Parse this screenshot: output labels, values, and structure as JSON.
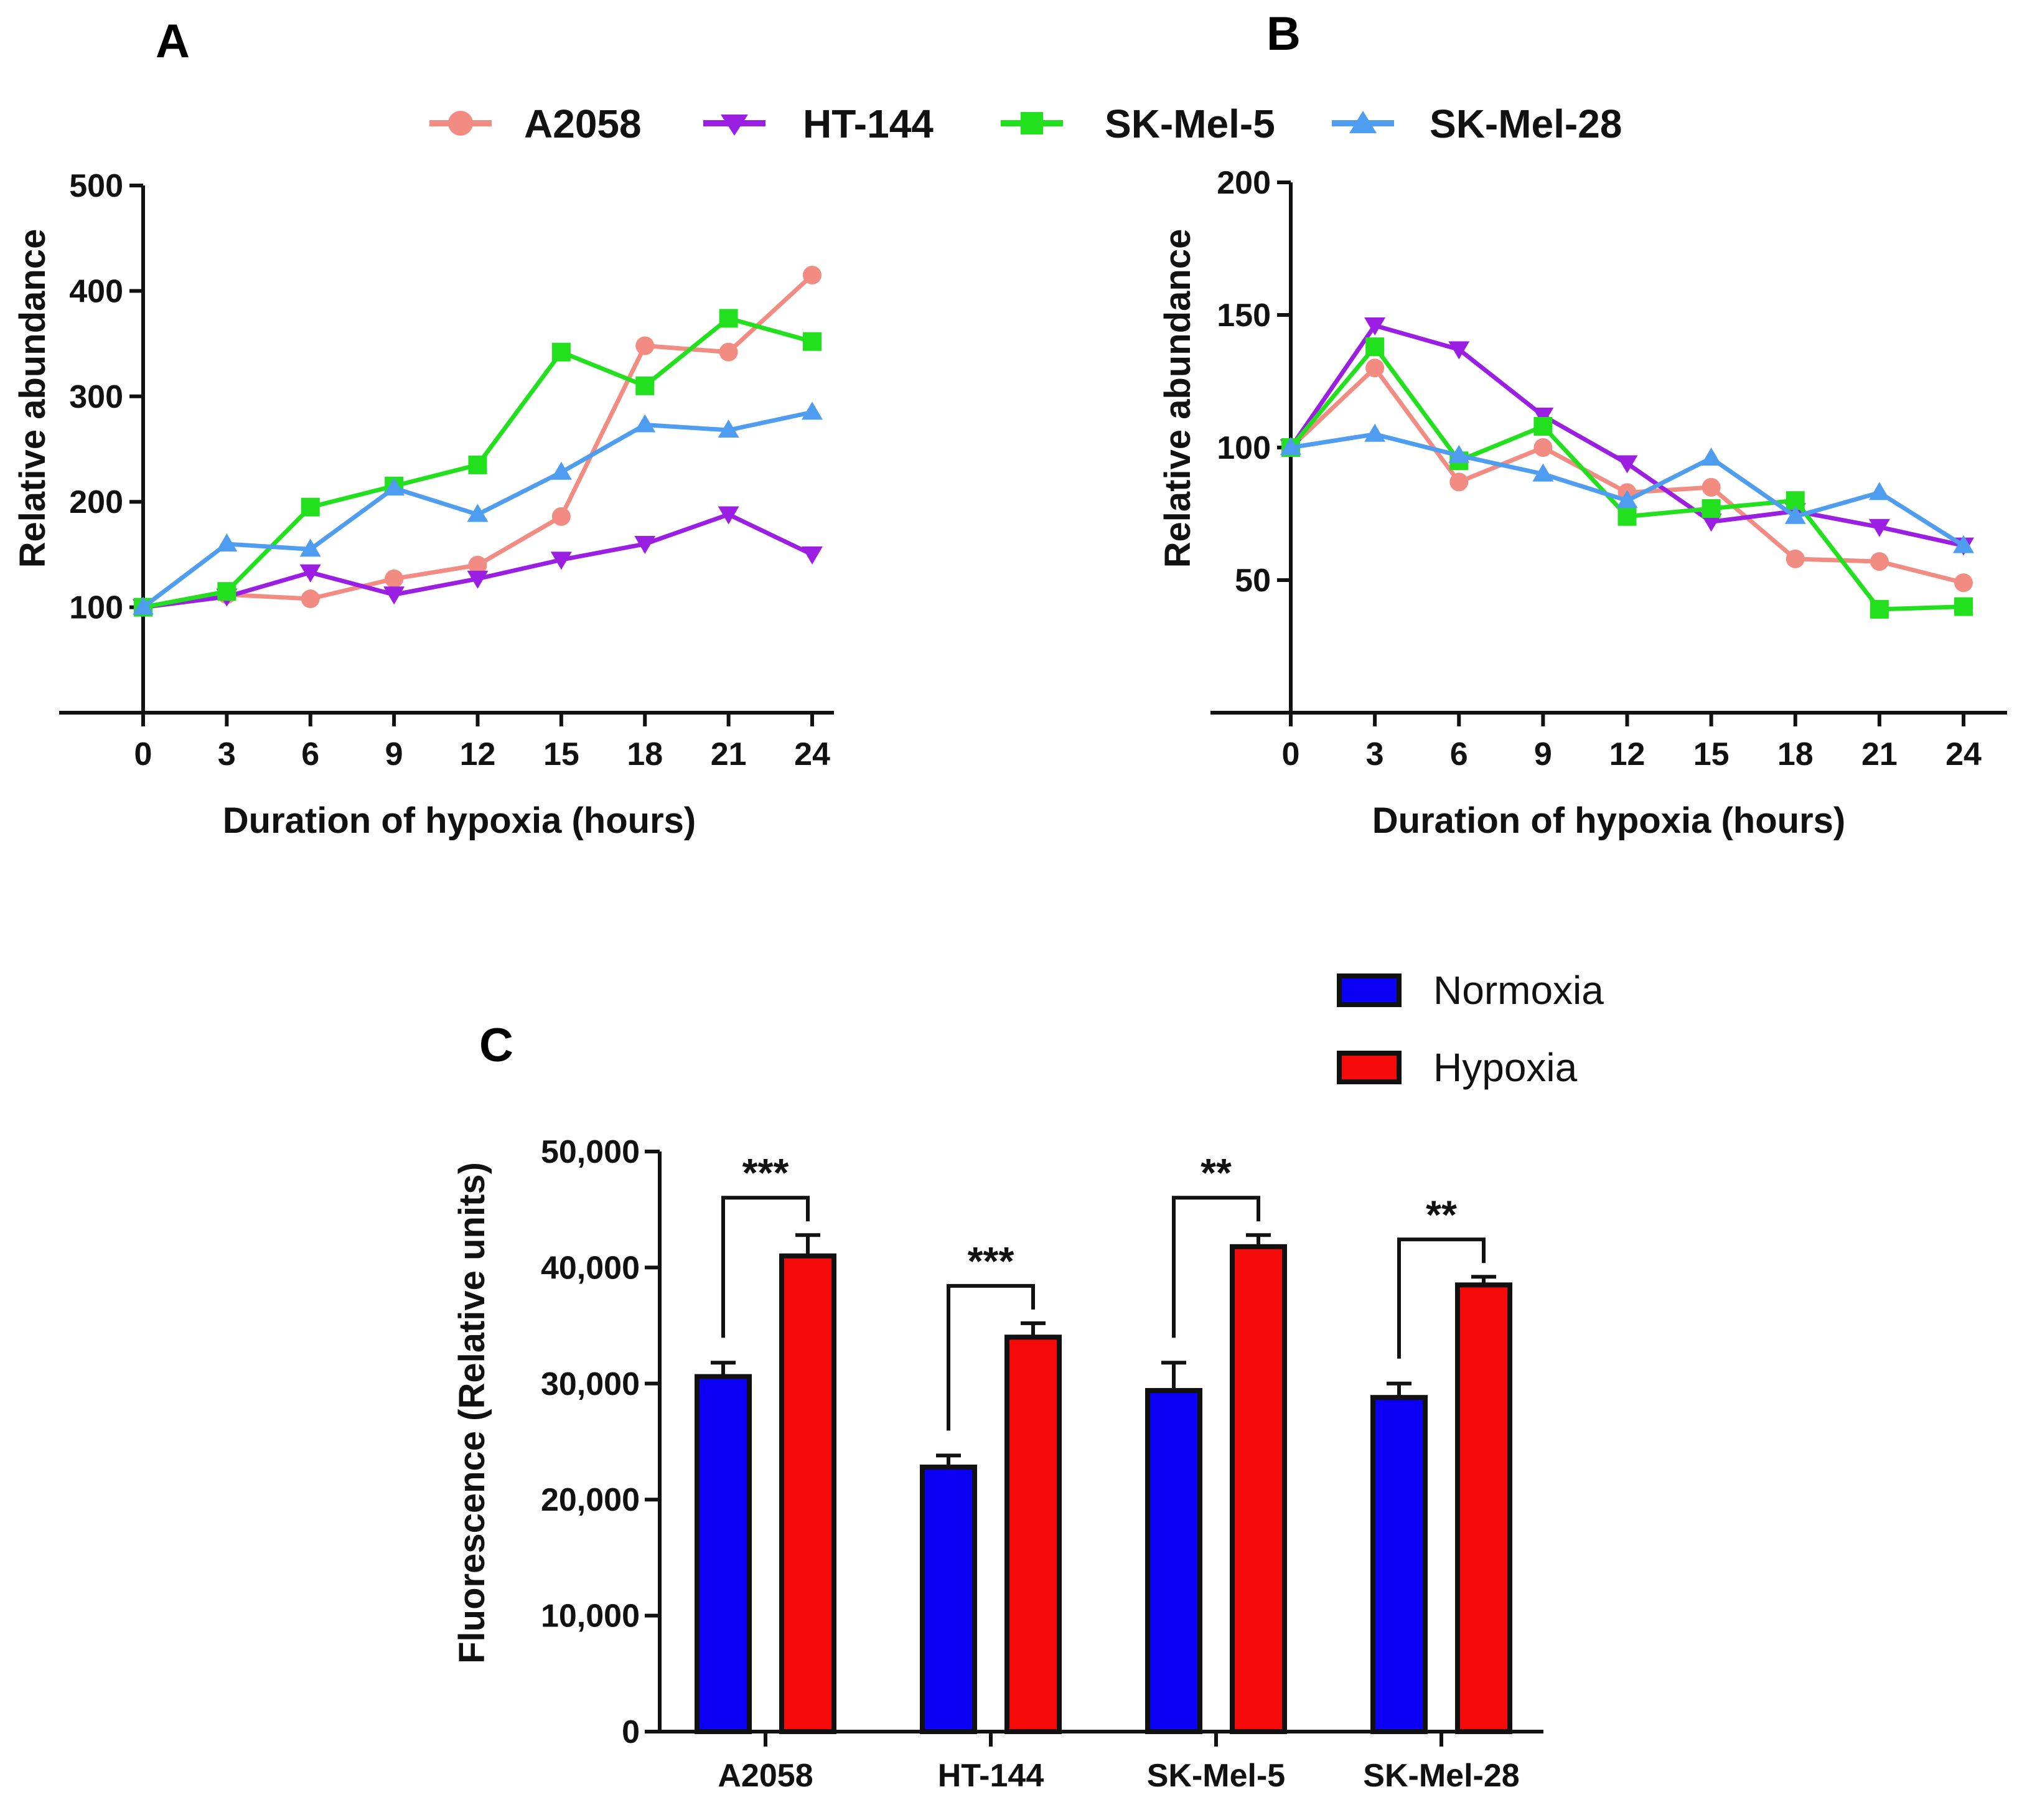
{
  "panel_labels": [
    "A",
    "B",
    "C"
  ],
  "colors": {
    "A2058": "#f28b82",
    "HT-144": "#9b1fe3",
    "SK-Mel-5": "#22e01e",
    "SK-Mel-28": "#4e9df0",
    "Normoxia": "#0b00f5",
    "Hypoxia": "#f50a0a"
  },
  "chart_data": [
    {
      "panel": "A",
      "type": "line",
      "xlabel": "Duration of hypoxia (hours)",
      "ylabel": "Relative abundance",
      "x": [
        0,
        3,
        6,
        9,
        12,
        15,
        18,
        21,
        24
      ],
      "xticks": [
        "0",
        "3",
        "6",
        "9",
        "12",
        "15",
        "18",
        "21",
        "24"
      ],
      "ylim": [
        0,
        500
      ],
      "yticks": [
        100,
        200,
        300,
        400,
        500
      ],
      "ytick_labels": [
        "100",
        "200",
        "300",
        "400",
        "500"
      ],
      "legend": [
        "A2058",
        "HT-144",
        "SK-Mel-5",
        "SK-Mel-28"
      ],
      "series": [
        {
          "name": "A2058",
          "marker": "circle",
          "values": [
            100,
            112,
            108,
            127,
            140,
            186,
            348,
            342,
            415
          ]
        },
        {
          "name": "HT-144",
          "marker": "triangle-down",
          "values": [
            100,
            110,
            133,
            112,
            127,
            145,
            160,
            188,
            150
          ]
        },
        {
          "name": "SK-Mel-5",
          "marker": "square",
          "values": [
            100,
            115,
            195,
            215,
            235,
            342,
            310,
            374,
            352
          ]
        },
        {
          "name": "SK-Mel-28",
          "marker": "triangle-up",
          "values": [
            100,
            160,
            155,
            213,
            188,
            228,
            273,
            268,
            285
          ]
        }
      ]
    },
    {
      "panel": "B",
      "type": "line",
      "xlabel": "Duration of hypoxia (hours)",
      "ylabel": "Relative abundance",
      "x": [
        0,
        3,
        6,
        9,
        12,
        15,
        18,
        21,
        24
      ],
      "xticks": [
        "0",
        "3",
        "6",
        "9",
        "12",
        "15",
        "18",
        "21",
        "24"
      ],
      "ylim": [
        0,
        200
      ],
      "yticks": [
        50,
        100,
        150,
        200
      ],
      "ytick_labels": [
        "50",
        "100",
        "150",
        "200"
      ],
      "series": [
        {
          "name": "A2058",
          "marker": "circle",
          "values": [
            100,
            130,
            87,
            100,
            83,
            85,
            58,
            57,
            49
          ]
        },
        {
          "name": "HT-144",
          "marker": "triangle-down",
          "values": [
            100,
            146,
            137,
            112,
            94,
            72,
            76,
            70,
            63
          ]
        },
        {
          "name": "SK-Mel-5",
          "marker": "square",
          "values": [
            100,
            138,
            95,
            108,
            74,
            77,
            80,
            39,
            40
          ]
        },
        {
          "name": "SK-Mel-28",
          "marker": "triangle-up",
          "values": [
            100,
            105,
            97,
            90,
            80,
            96,
            74,
            83,
            63
          ]
        }
      ]
    },
    {
      "panel": "C",
      "type": "bar",
      "ylabel": "Fluorescence (Relative units)",
      "categories": [
        "A2058",
        "HT-144",
        "SK-Mel-5",
        "SK-Mel-28"
      ],
      "ylim": [
        0,
        50000
      ],
      "yticks": [
        0,
        10000,
        20000,
        30000,
        40000,
        50000
      ],
      "ytick_labels": [
        "0",
        "10,000",
        "20,000",
        "30,000",
        "40,000",
        "50,000"
      ],
      "legend": [
        "Normoxia",
        "Hypoxia"
      ],
      "series": [
        {
          "name": "Normoxia",
          "values": [
            30600,
            22800,
            29400,
            28800
          ],
          "errors": [
            1200,
            1000,
            2400,
            1200
          ]
        },
        {
          "name": "Hypoxia",
          "values": [
            41000,
            34000,
            41800,
            38500
          ],
          "errors": [
            1800,
            1200,
            1000,
            700
          ]
        }
      ],
      "significance": [
        "***",
        "***",
        "**",
        "**"
      ]
    }
  ]
}
